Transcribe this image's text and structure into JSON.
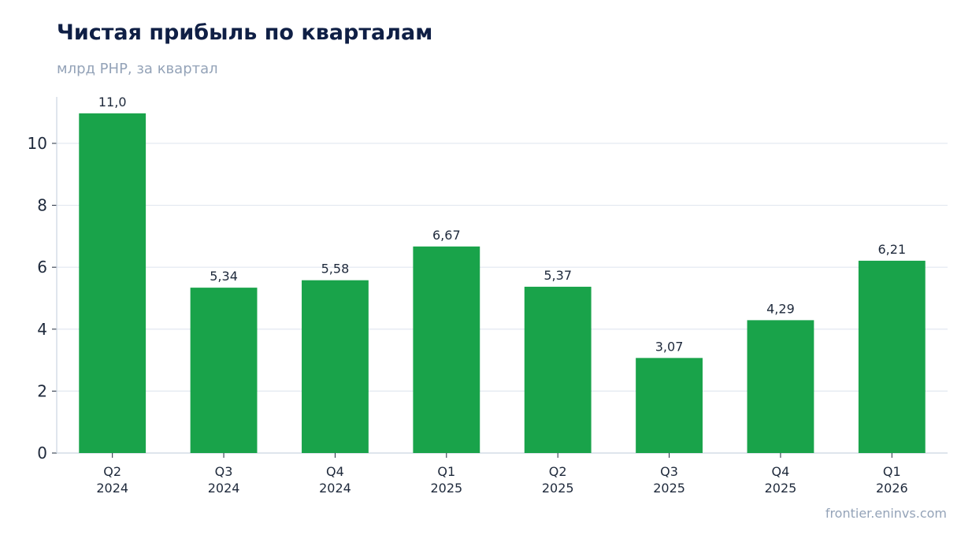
{
  "header": {
    "title": "Чистая прибыль по кварталам",
    "subtitle": "млрд РНР, за квартал"
  },
  "footer": {
    "source": "frontier.eninvs.com"
  },
  "colors": {
    "bar": "#19a34a",
    "grid": "#e2e8f0",
    "axis": "#cbd5e1",
    "title": "#0f1f45",
    "muted": "#94a3b8",
    "text": "#1e293b"
  },
  "chart_data": {
    "type": "bar",
    "title": "Чистая прибыль по кварталам",
    "subtitle": "млрд РНР, за квартал",
    "categories": [
      [
        "Q2",
        "2024"
      ],
      [
        "Q3",
        "2024"
      ],
      [
        "Q4",
        "2024"
      ],
      [
        "Q1",
        "2025"
      ],
      [
        "Q2",
        "2025"
      ],
      [
        "Q3",
        "2025"
      ],
      [
        "Q4",
        "2025"
      ],
      [
        "Q1",
        "2026"
      ]
    ],
    "values": [
      10.97,
      5.34,
      5.58,
      6.67,
      5.37,
      3.07,
      4.29,
      6.21
    ],
    "data_labels": [
      "11,0",
      "5,34",
      "5,58",
      "6,67",
      "5,37",
      "3,07",
      "4,29",
      "6,21"
    ],
    "yticks": [
      0,
      2,
      4,
      6,
      8,
      10
    ],
    "ylim": [
      0,
      11.5
    ],
    "grid": true,
    "legend": "none"
  }
}
